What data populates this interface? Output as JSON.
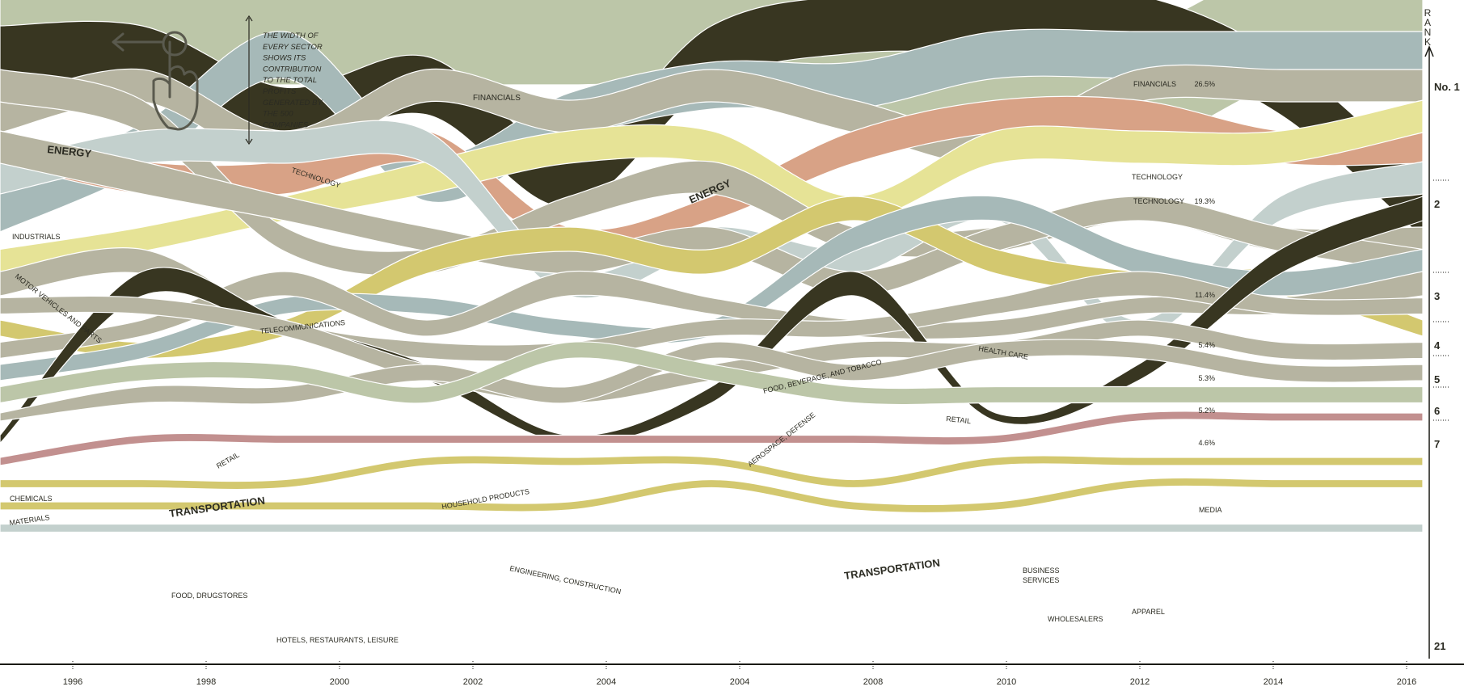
{
  "chart_data": {
    "type": "area",
    "subtype": "ranked streamgraph (bump area chart)",
    "x": [
      "1996",
      "1998",
      "2000",
      "2002",
      "2004",
      "2004",
      "2008",
      "2010",
      "2012",
      "2014",
      "2016"
    ],
    "x_tick_labels": [
      "1996",
      "1998",
      "2000",
      "2002",
      "2004",
      "2004",
      "2008",
      "2010",
      "2012",
      "2014",
      "2016"
    ],
    "y_axis_title": "RANK",
    "rank_labels": [
      "No. 1",
      "2",
      "3",
      "4",
      "5",
      "6",
      "7",
      "21"
    ],
    "annotation": {
      "lines": [
        "THE WIDTH OF",
        "EVERY SECTOR",
        "SHOWS ITS",
        "CONTRIBUTION",
        "TO THE TOTAL",
        "PROFITS",
        "GENERATED BY",
        "THE 500",
        "COMPANIES"
      ],
      "icon": "swipe-left-hand-icon"
    },
    "share_2016": [
      {
        "rank": 1,
        "sector": "FINANCIALS",
        "value_text": "26.5%",
        "value": 26.5
      },
      {
        "rank": 2,
        "sector": "TECHNOLOGY",
        "value_text": "19.3%",
        "value": 19.3
      },
      {
        "rank": 3,
        "sector": "",
        "value_text": "11.4%",
        "value": 11.4
      },
      {
        "rank": 4,
        "sector": "",
        "value_text": "5.4%",
        "value": 5.4
      },
      {
        "rank": 5,
        "sector": "",
        "value_text": "5.3%",
        "value": 5.3
      },
      {
        "rank": 6,
        "sector": "",
        "value_text": "5.2%",
        "value": 5.2
      },
      {
        "rank": 7,
        "sector": "",
        "value_text": "4.6%",
        "value": 4.6
      }
    ],
    "series": [
      {
        "name": "FINANCIALS",
        "color": "#bcc6a8",
        "rank_by_year": [
          1,
          1,
          1,
          1,
          1,
          1,
          2,
          2,
          3,
          1,
          1
        ]
      },
      {
        "name": "ENERGY",
        "color": "#383621",
        "rank_by_year": [
          2,
          2,
          4,
          3,
          6,
          2,
          1,
          1,
          1,
          3,
          7
        ]
      },
      {
        "name": "TECHNOLOGY",
        "color": "#a6b9b8",
        "rank_by_year": [
          7,
          5,
          2,
          6,
          4,
          3,
          3,
          2,
          2,
          2,
          2
        ]
      },
      {
        "name": "HEALTH CARE",
        "color": "#b6b4a1",
        "rank_by_year": [
          4,
          3,
          5,
          3,
          4,
          3,
          4,
          5,
          3,
          3,
          3
        ]
      },
      {
        "name": "FOOD, BEVERAGE, AND TOBACCO",
        "color": "#d8a286",
        "rank_by_year": [
          5,
          6,
          6,
          5,
          8,
          7,
          5,
          4,
          4,
          5,
          5
        ]
      },
      {
        "name": "RETAIL",
        "color": "#e6e396",
        "rank_by_year": [
          9,
          8,
          7,
          6,
          5,
          5,
          7,
          5,
          5,
          5,
          4
        ]
      },
      {
        "name": "TELECOMMUNICATIONS",
        "color": "#c3d0cd",
        "rank_by_year": [
          6,
          5,
          5,
          5,
          10,
          8,
          9,
          7,
          12,
          7,
          6
        ]
      },
      {
        "name": "INDUSTRIALS",
        "color": "#b6b4a1",
        "rank_by_year": [
          3,
          4,
          8,
          9,
          7,
          6,
          8,
          8,
          7,
          8,
          8
        ]
      },
      {
        "name": "MOTOR VEHICLES AND PARTS",
        "color": "#b6b4a1",
        "rank_by_year": [
          5,
          6,
          7,
          8,
          9,
          8,
          10,
          8,
          7,
          8,
          9
        ]
      },
      {
        "name": "AEROSPACE, DEFENSE",
        "color": "#a6b9b8",
        "rank_by_year": [
          14,
          13,
          11,
          11,
          12,
          12,
          8,
          7,
          9,
          10,
          9
        ]
      },
      {
        "name": "HOUSEHOLD PRODUCTS",
        "color": "#d3c86f",
        "rank_by_year": [
          12,
          13,
          12,
          9,
          8,
          9,
          7,
          9,
          10,
          10,
          12
        ]
      },
      {
        "name": "CHEMICALS",
        "color": "#b6b4a1",
        "rank_by_year": [
          10,
          9,
          12,
          13,
          13,
          12,
          12,
          11,
          10,
          11,
          11
        ]
      },
      {
        "name": "MATERIALS",
        "color": "#b6b4a1",
        "rank_by_year": [
          11,
          11,
          12,
          14,
          15,
          14,
          13,
          13,
          12,
          13,
          13
        ]
      },
      {
        "name": "TRANSPORTATION",
        "color": "#383621",
        "rank_by_year": [
          17,
          10,
          12,
          14,
          17,
          15,
          10,
          16,
          14,
          9,
          7
        ]
      },
      {
        "name": "ENGINEERING, CONSTRUCTION",
        "color": "#bcc6a8",
        "rank_by_year": [
          15,
          14,
          14,
          15,
          13,
          14,
          15,
          15,
          15,
          15,
          15
        ]
      },
      {
        "name": "BUSINESS SERVICES",
        "color": "#b6b4a1",
        "rank_by_year": [
          16,
          15,
          15,
          14,
          15,
          13,
          14,
          13,
          13,
          14,
          14
        ]
      },
      {
        "name": "MEDIA",
        "color": "#b6b4a1",
        "rank_by_year": [
          13,
          12,
          10,
          12,
          10,
          11,
          12,
          12,
          11,
          11,
          10
        ]
      },
      {
        "name": "FOOD, DRUGSTORES",
        "color": "#c2908f",
        "rank_by_year": [
          18,
          17,
          17,
          17,
          17,
          17,
          17,
          17,
          16,
          16,
          16
        ]
      },
      {
        "name": "WHOLESALERS",
        "color": "#d3c86f",
        "rank_by_year": [
          19,
          19,
          19,
          18,
          18,
          18,
          19,
          18,
          18,
          18,
          18
        ]
      },
      {
        "name": "APPAREL",
        "color": "#d3c86f",
        "rank_by_year": [
          20,
          20,
          20,
          20,
          20,
          19,
          20,
          20,
          19,
          19,
          19
        ]
      },
      {
        "name": "HOTELS, RESTAURANTS, LEISURE",
        "color": "#c3d0cd",
        "rank_by_year": [
          21,
          21,
          21,
          21,
          21,
          21,
          21,
          21,
          21,
          21,
          21
        ]
      }
    ]
  },
  "labels": {
    "financials": "FINANCIALS",
    "energy": "ENERGY",
    "technology": "TECHNOLOGY",
    "industrials": "INDUSTRIALS",
    "motor_vehicles": "MOTOR VEHICLES AND PARTS",
    "telecommunications": "TELECOMMUNICATIONS",
    "retail": "RETAIL",
    "chemicals": "CHEMICALS",
    "materials": "MATERIALS",
    "transportation": "TRANSPORTATION",
    "household_products": "HOUSEHOLD PRODUCTS",
    "engineering": "ENGINEERING, CONSTRUCTION",
    "food_drugstores": "FOOD, DRUGSTORES",
    "hotels": "HOTELS, RESTAURANTS, LEISURE",
    "health_care": "HEALTH CARE",
    "food_bev": "FOOD, BEVERAGE, AND TOBACCO",
    "aerospace": "AEROSPACE, DEFENSE",
    "business_services_1": "BUSINESS",
    "business_services_2": "SERVICES",
    "wholesalers": "WHOLESALERS",
    "apparel": "APPAREL",
    "media": "MEDIA"
  },
  "colors": {
    "financials": "#bcc6a8",
    "energy": "#383621",
    "technology": "#a6b9b8",
    "grey": "#b6b4a1",
    "light_blue": "#c3d0cd",
    "salmon": "#d8a286",
    "yellow": "#e6e396",
    "mustard": "#d3c86f",
    "rose": "#c2908f",
    "text": "#2b2b22",
    "axis": "#1a1a14"
  }
}
